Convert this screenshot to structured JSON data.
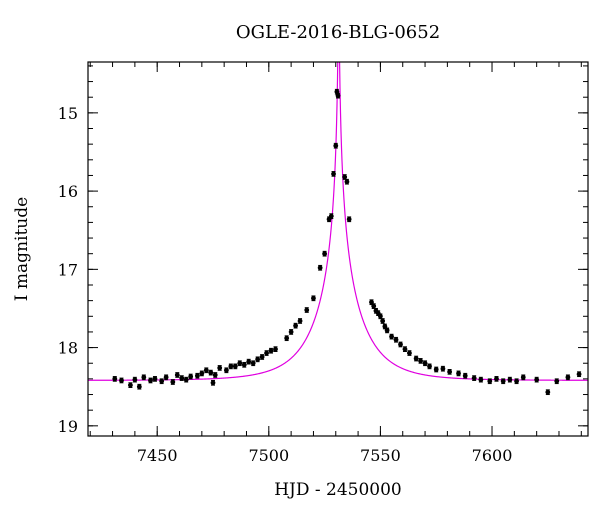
{
  "chart_data": {
    "type": "scatter",
    "title": "OGLE-2016-BLG-0652",
    "xlabel": "HJD - 2450000",
    "ylabel": "I magnitude",
    "xlim": [
      7419,
      7643
    ],
    "ylim": [
      19.13,
      14.35
    ],
    "y_inverted": true,
    "grid": false,
    "x_major_ticks": [
      7450,
      7500,
      7550,
      7600
    ],
    "x_minor_step": 10,
    "y_major_ticks": [
      15,
      16,
      17,
      18,
      19
    ],
    "y_minor_step": 0.2,
    "x_tick_labels": [
      "7450",
      "7500",
      "7550",
      "7600"
    ],
    "y_tick_labels": [
      "15",
      "16",
      "17",
      "18",
      "19"
    ],
    "colors": {
      "data": "#000000",
      "model": "#e000e0"
    },
    "model": {
      "t0": 531.3,
      "baseline": 18.42,
      "u0": 0.012,
      "tE": 20.0
    },
    "series": [
      {
        "kind": "points",
        "error_bar": 0.03,
        "x": [
          7431,
          7434,
          7438,
          7440,
          7442,
          7444,
          7447,
          7449,
          7452,
          7454,
          7457,
          7459,
          7461,
          7463,
          7465,
          7468,
          7470,
          7472,
          7474,
          7476,
          7478,
          7481,
          7483,
          7485,
          7487,
          7489,
          7491,
          7493,
          7495,
          7497,
          7499,
          7501,
          7503,
          7508,
          7510,
          7512,
          7514,
          7517,
          7520,
          7523,
          7525,
          7527,
          7528,
          7529,
          7530,
          7530.5,
          7531,
          7534,
          7535,
          7536,
          7546,
          7547,
          7548,
          7549,
          7550,
          7551,
          7552,
          7553,
          7555,
          7557,
          7559,
          7561,
          7563,
          7566,
          7568,
          7570,
          7572,
          7575,
          7578,
          7581,
          7585,
          7588,
          7592,
          7595,
          7599,
          7602,
          7605,
          7608,
          7611,
          7614,
          7620,
          7625,
          7629,
          7634,
          7639,
          7475
        ],
        "y": [
          18.4,
          18.42,
          18.48,
          18.41,
          18.5,
          18.38,
          18.42,
          18.4,
          18.43,
          18.38,
          18.44,
          18.35,
          18.39,
          18.41,
          18.37,
          18.36,
          18.33,
          18.29,
          18.32,
          18.35,
          18.26,
          18.29,
          18.24,
          18.24,
          18.2,
          18.22,
          18.18,
          18.2,
          18.15,
          18.12,
          18.07,
          18.04,
          18.02,
          17.88,
          17.8,
          17.72,
          17.66,
          17.52,
          17.37,
          16.98,
          16.8,
          16.36,
          16.32,
          15.78,
          15.42,
          14.73,
          14.78,
          15.82,
          15.88,
          16.36,
          17.42,
          17.47,
          17.53,
          17.56,
          17.6,
          17.66,
          17.73,
          17.78,
          17.86,
          17.9,
          17.96,
          18.02,
          18.07,
          18.14,
          18.17,
          18.2,
          18.24,
          18.28,
          18.27,
          18.31,
          18.33,
          18.36,
          18.39,
          18.41,
          18.43,
          18.4,
          18.43,
          18.41,
          18.43,
          18.38,
          18.41,
          18.57,
          18.43,
          18.38,
          18.34,
          18.45
        ]
      }
    ]
  }
}
